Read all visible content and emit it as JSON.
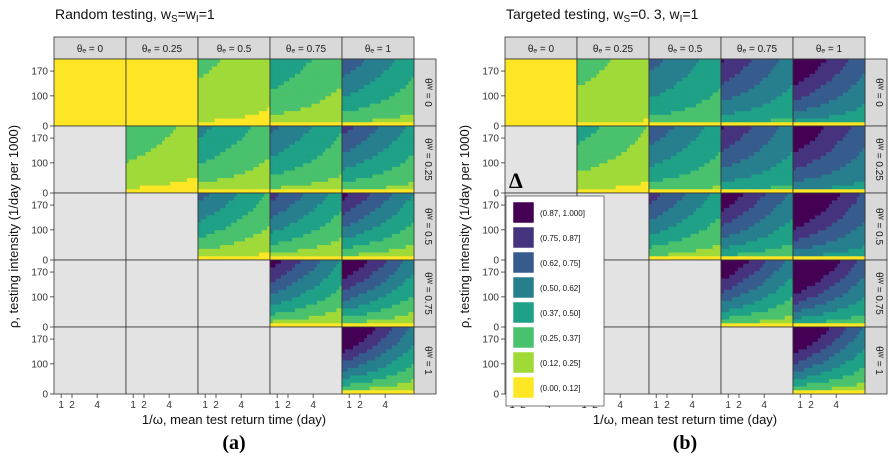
{
  "chart_data": [
    {
      "type": "heatmap",
      "panel": "a",
      "title": "Random testing, w",
      "title_sub1": "S",
      "title_mid": "=w",
      "title_sub2": "I",
      "title_tail": "=1",
      "caption": "(a)",
      "xlabel": "1/ω, mean test return time (day)",
      "ylabel": "ρ, testing intensity (1/day per 1000)",
      "col_labels": [
        "θₑ = 0",
        "θₑ = 0.25",
        "θₑ = 0.5",
        "θₑ = 0.75",
        "θₑ = 1"
      ],
      "row_labels": [
        "θᵂ = 0",
        "θᵂ = 0.25",
        "θᵂ = 0.5",
        "θᵂ = 0.75",
        "θᵂ = 1"
      ],
      "x_ticks": [
        "1",
        "2",
        "4"
      ],
      "y_ticks": [
        "170",
        "100",
        "0"
      ],
      "cells": [
        [
          {
            "base": 0.06,
            "scale": 0.0
          },
          {
            "base": 0.05,
            "scale": 0.06
          },
          {
            "base": 0.08,
            "scale": 0.2
          },
          {
            "base": 0.12,
            "scale": 0.35
          },
          {
            "base": 0.14,
            "scale": 0.55
          }
        ],
        [
          null,
          {
            "base": 0.06,
            "scale": 0.28
          },
          {
            "base": 0.1,
            "scale": 0.42
          },
          {
            "base": 0.13,
            "scale": 0.5
          },
          {
            "base": 0.14,
            "scale": 0.62
          }
        ],
        [
          null,
          null,
          {
            "base": 0.04,
            "scale": 0.58
          },
          {
            "base": 0.06,
            "scale": 0.68
          },
          {
            "base": 0.07,
            "scale": 0.78
          }
        ],
        [
          null,
          null,
          null,
          {
            "base": 0.04,
            "scale": 0.82
          },
          {
            "base": 0.05,
            "scale": 0.92
          }
        ],
        [
          null,
          null,
          null,
          null,
          {
            "base": 0.04,
            "scale": 1.0
          }
        ]
      ]
    },
    {
      "type": "heatmap",
      "panel": "b",
      "title": "Targeted testing, w",
      "title_sub1": "S",
      "title_mid": "=0. 3, w",
      "title_sub2": "I",
      "title_tail": "=1",
      "caption": "(b)",
      "xlabel": "1/ω, mean test return time (day)",
      "ylabel": "ρ, testing intensity (1/day per 1000)",
      "col_labels": [
        "θₑ = 0",
        "θₑ = 0.25",
        "θₑ = 0.5",
        "θₑ = 0.75",
        "θₑ = 1"
      ],
      "row_labels": [
        "θᵂ = 0",
        "θᵂ = 0.25",
        "θᵂ = 0.5",
        "θᵂ = 0.75",
        "θᵂ = 1"
      ],
      "x_ticks": [
        "1",
        "2",
        "4"
      ],
      "y_ticks": [
        "170",
        "100",
        "0"
      ],
      "cells": [
        [
          {
            "base": 0.06,
            "scale": 0.0
          },
          {
            "base": 0.1,
            "scale": 0.2
          },
          {
            "base": 0.22,
            "scale": 0.45
          },
          {
            "base": 0.28,
            "scale": 0.6
          },
          {
            "base": 0.32,
            "scale": 0.72
          }
        ],
        [
          null,
          {
            "base": 0.06,
            "scale": 0.35
          },
          {
            "base": 0.18,
            "scale": 0.52
          },
          {
            "base": 0.28,
            "scale": 0.6
          },
          {
            "base": 0.38,
            "scale": 0.66
          }
        ],
        [
          null,
          null,
          {
            "base": 0.1,
            "scale": 0.66
          },
          {
            "base": 0.2,
            "scale": 0.76
          },
          {
            "base": 0.34,
            "scale": 0.8
          }
        ],
        [
          null,
          null,
          null,
          {
            "base": 0.08,
            "scale": 0.9
          },
          {
            "base": 0.18,
            "scale": 0.98
          }
        ],
        [
          null,
          null,
          null,
          null,
          {
            "base": 0.06,
            "scale": 1.0
          }
        ]
      ]
    }
  ],
  "legend": {
    "symbol": "Δ",
    "bins": [
      "(0.87, 1.000]",
      "(0.75, 0.87]",
      "(0.62, 0.75]",
      "(0.50, 0.62]",
      "(0.37, 0.50]",
      "(0.25, 0.37]",
      "(0.12, 0.25]",
      "(0.00, 0.12]"
    ]
  },
  "colors": {
    "bins": [
      "#440154",
      "#46337e",
      "#365c8d",
      "#277f8e",
      "#1fa187",
      "#4ac16d",
      "#a0da39",
      "#fde725"
    ],
    "empty": "#e3e3e3",
    "strip": "#d9d9d9"
  }
}
